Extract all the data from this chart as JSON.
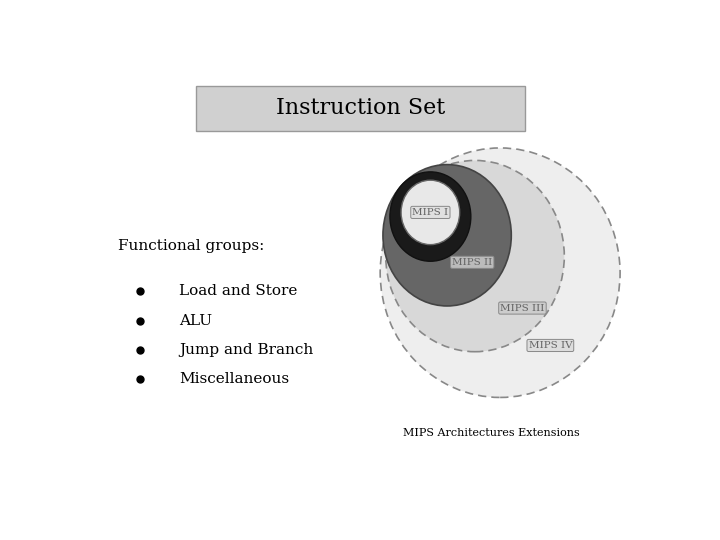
{
  "title": "Instruction Set",
  "title_box_color": "#d0d0d0",
  "title_fontsize": 16,
  "bg_color": "#ffffff",
  "functional_groups_label": "Functional groups:",
  "bullet_items": [
    "Load and Store",
    "ALU",
    "Jump and Branch",
    "Miscellaneous"
  ],
  "caption": "MIPS Architectures Extensions",
  "mips_label_fontsize": 7.5,
  "mips_label_color": "#666666"
}
